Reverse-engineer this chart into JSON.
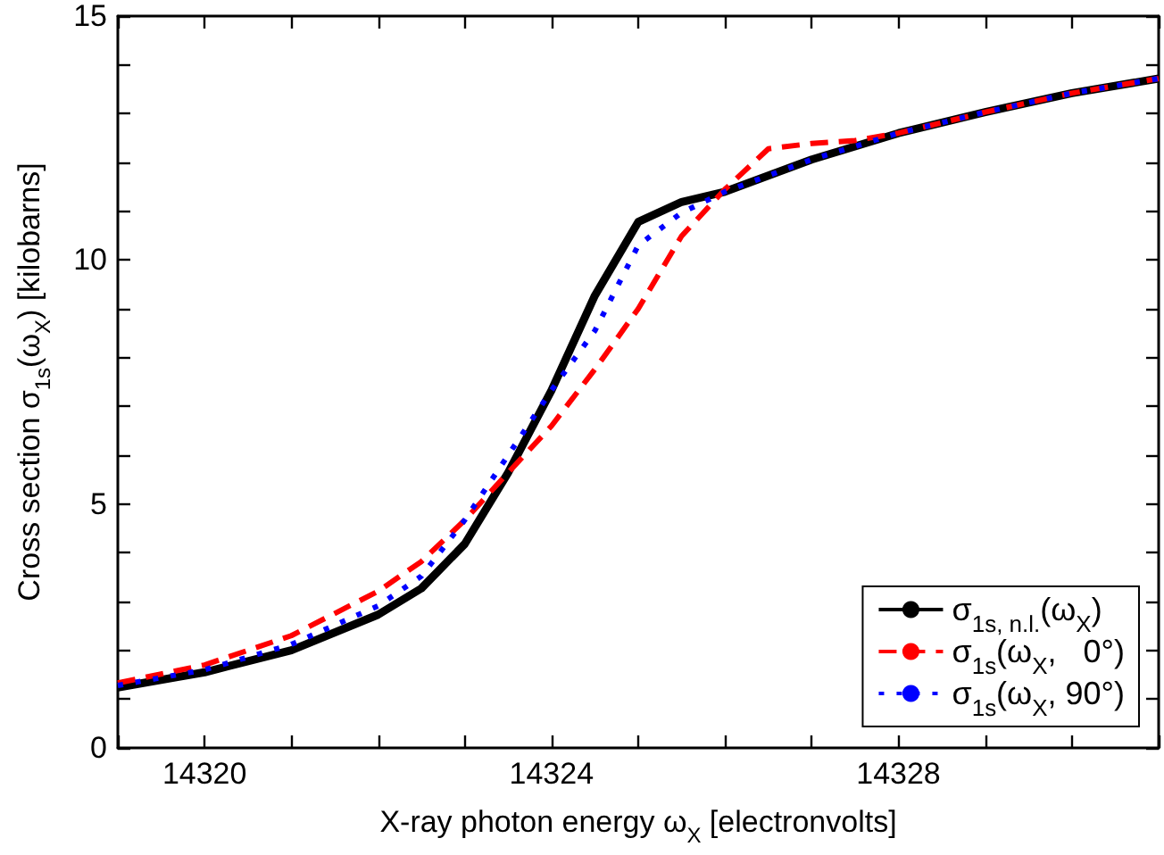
{
  "chart_data": {
    "type": "line",
    "xlabel": "X-ray photon energy ω$_{X}$ [electronvolts]",
    "ylabel": "Cross section σ$_{1s}$(ω$_{X}$) [kilobarns]",
    "xlim": [
      14319,
      14331
    ],
    "xticks": [
      {
        "value": 14319,
        "label": null
      },
      14320,
      {
        "value": 14321,
        "label": null
      },
      {
        "value": 14322,
        "label": null
      },
      {
        "value": 14323,
        "label": null
      },
      14324,
      {
        "value": 14325,
        "label": null
      },
      {
        "value": 14326,
        "label": null
      },
      {
        "value": 14327,
        "label": null
      },
      14328,
      {
        "value": 14329,
        "label": null
      },
      {
        "value": 14330,
        "label": null
      },
      {
        "value": 14331,
        "label": null
      }
    ],
    "ylim": [
      0,
      15
    ],
    "yticks": [
      0,
      {
        "value": 1,
        "label": null
      },
      {
        "value": 2,
        "label": null
      },
      {
        "value": 3,
        "label": null
      },
      {
        "value": 4,
        "label": null
      },
      5,
      {
        "value": 6,
        "label": null
      },
      {
        "value": 7,
        "label": null
      },
      {
        "value": 8,
        "label": null
      },
      {
        "value": 9,
        "label": null
      },
      10,
      {
        "value": 11,
        "label": null
      },
      {
        "value": 12,
        "label": null
      },
      {
        "value": 13,
        "label": null
      },
      {
        "value": 14,
        "label": null
      },
      15
    ],
    "x": [
      14319,
      14320,
      14321,
      14322,
      14322.5,
      14323,
      14323.5,
      14324,
      14324.5,
      14325,
      14325.5,
      14326,
      14326.5,
      14327,
      14327.5,
      14328,
      14329,
      14330,
      14331
    ],
    "grid": false,
    "legend": "bottom right",
    "marker": "none",
    "series": [
      {
        "name": "σ$_{1s, n.l.}$(ω$_{X}$)",
        "color": "#000000",
        "line_style": "solid",
        "values": [
          1.24,
          1.55,
          2.0,
          2.73,
          3.27,
          4.18,
          5.64,
          7.33,
          9.27,
          10.78,
          11.19,
          11.4,
          11.73,
          12.06,
          12.33,
          12.6,
          13.03,
          13.42,
          13.72
        ]
      },
      {
        "name": "σ$_{1s}$(ω$_{X}$,   0°)",
        "color": "#ff0000",
        "line_style": "dashed",
        "values": [
          1.33,
          1.7,
          2.3,
          3.21,
          3.82,
          4.67,
          5.64,
          6.6,
          7.76,
          9.0,
          10.49,
          11.45,
          12.28,
          12.39,
          12.45,
          12.6,
          13.03,
          13.42,
          13.72
        ]
      },
      {
        "name": "σ$_{1s}$(ω$_{X}$, 90°)",
        "color": "#0000ff",
        "line_style": "dotted",
        "values": [
          1.28,
          1.6,
          2.12,
          2.91,
          3.52,
          4.67,
          6.0,
          7.33,
          8.55,
          10.3,
          10.97,
          11.4,
          11.73,
          12.06,
          12.33,
          12.6,
          13.03,
          13.42,
          13.72
        ]
      }
    ]
  }
}
